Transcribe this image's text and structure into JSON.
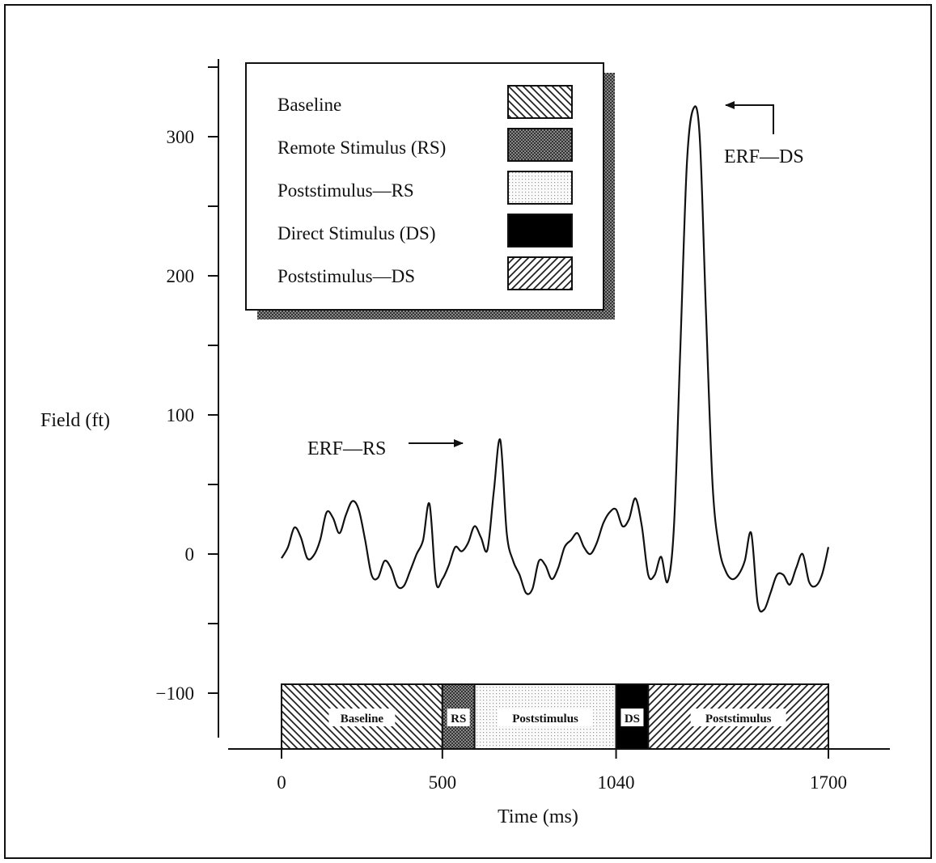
{
  "chart_data": {
    "type": "line",
    "xlabel": "Time (ms)",
    "ylabel": "Field (ft)",
    "xlim": [
      0,
      1700
    ],
    "ylim": [
      -140,
      350
    ],
    "x_ticks": [
      0,
      500,
      1040,
      1700
    ],
    "x_tick_labels": [
      "0",
      "500",
      "1040",
      "1700"
    ],
    "y_ticks": [
      -100,
      0,
      100,
      200,
      300
    ],
    "y_tick_labels": [
      "-100",
      "0",
      "100",
      "200",
      "300"
    ],
    "grid": false,
    "series": [
      {
        "x": [
          0,
          20,
          40,
          60,
          80,
          100,
          120,
          140,
          160,
          180,
          200,
          220,
          240,
          260,
          280,
          300,
          320,
          340,
          360,
          380,
          400,
          420,
          440,
          460,
          480,
          500,
          520,
          540,
          560,
          580,
          600,
          620,
          640,
          660,
          680,
          700,
          720,
          740,
          760,
          780,
          800,
          820,
          840,
          860,
          880,
          900,
          920,
          940,
          960,
          980,
          1000,
          1020,
          1040,
          1060,
          1080,
          1100,
          1120,
          1140,
          1160,
          1180,
          1200,
          1220,
          1240,
          1260,
          1280,
          1300,
          1320,
          1340,
          1360,
          1380,
          1400,
          1420,
          1440,
          1460,
          1480,
          1500,
          1520,
          1540,
          1560,
          1580,
          1600,
          1620,
          1640,
          1660,
          1680,
          1700
        ],
        "values": [
          -3,
          5,
          19,
          12,
          -3,
          -1,
          10,
          30,
          26,
          15,
          28,
          38,
          32,
          10,
          -15,
          -17,
          -5,
          -10,
          -23,
          -23,
          -12,
          0,
          10,
          36,
          -20,
          -18,
          -8,
          5,
          2,
          8,
          20,
          12,
          3,
          45,
          82,
          15,
          -5,
          -15,
          -28,
          -25,
          -5,
          -8,
          -18,
          -10,
          5,
          10,
          15,
          5,
          0,
          8,
          22,
          30,
          32,
          20,
          25,
          40,
          20,
          -15,
          -15,
          -2,
          -20,
          20,
          150,
          280,
          320,
          300,
          170,
          50,
          5,
          -12,
          -18,
          -15,
          -5,
          15,
          -35,
          -40,
          -28,
          -15,
          -15,
          -22,
          -10,
          0,
          -20,
          -23,
          -15,
          5
        ]
      }
    ],
    "annotations": [
      {
        "text": "ERF—RS",
        "x": 652,
        "y": 75
      },
      {
        "text": "ERF—DS",
        "x": 1295,
        "y": 310
      }
    ],
    "legend": {
      "placement": "top-left",
      "entries": [
        {
          "label": "Baseline",
          "pattern": "backslash-hatch"
        },
        {
          "label": "Remote Stimulus (RS)",
          "pattern": "dense-crosshatch"
        },
        {
          "label": "Poststimulus—RS",
          "pattern": "light-dots"
        },
        {
          "label": "Direct Stimulus (DS)",
          "pattern": "solid-black"
        },
        {
          "label": "Poststimulus—DS",
          "pattern": "slash-hatch"
        }
      ]
    },
    "bands": [
      {
        "label": "Baseline",
        "start": 0,
        "end": 500,
        "pattern": "backslash-hatch"
      },
      {
        "label": "RS",
        "start": 500,
        "end": 600,
        "pattern": "dense-crosshatch"
      },
      {
        "label": "Poststimulus",
        "start": 600,
        "end": 1040,
        "pattern": "light-dots"
      },
      {
        "label": "DS",
        "start": 1040,
        "end": 1140,
        "pattern": "solid-black"
      },
      {
        "label": "Poststimulus",
        "start": 1140,
        "end": 1700,
        "pattern": "slash-hatch"
      }
    ],
    "colors": {
      "line": "#111111",
      "background": "#ffffff",
      "ink": "#111111"
    }
  }
}
